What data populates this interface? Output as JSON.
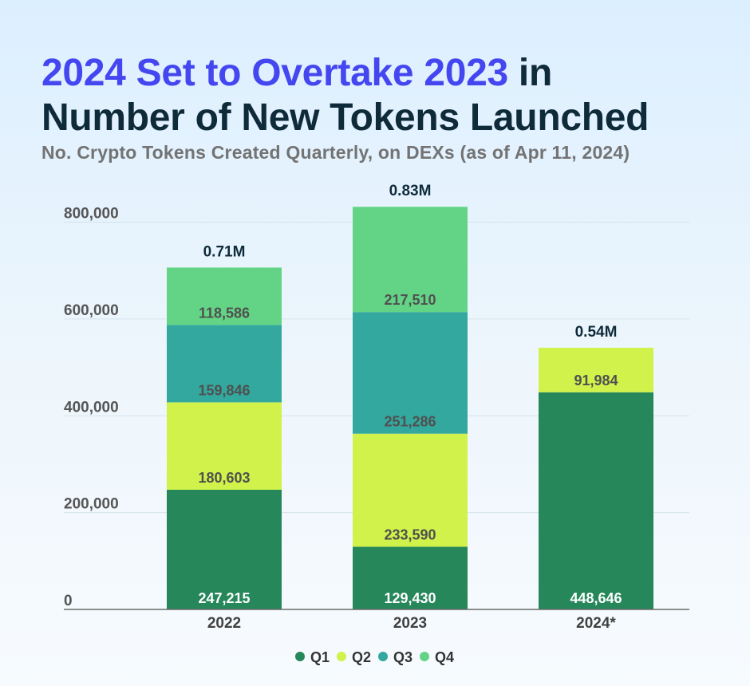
{
  "header": {
    "title_accent": "2024 Set to Overtake 2023",
    "title_rest_1": " in",
    "title_line2": "Number of New Tokens Launched",
    "subtitle": "No. Crypto Tokens Created Quarterly, on DEXs (as of Apr 11, 2024)"
  },
  "chart_data": {
    "type": "bar",
    "stacked": true,
    "title": "2024 Set to Overtake 2023 in Number of New Tokens Launched",
    "subtitle": "No. Crypto Tokens Created Quarterly, on DEXs (as of Apr 11, 2024)",
    "categories": [
      "2022",
      "2023",
      "2024*"
    ],
    "series": [
      {
        "name": "Q1",
        "color": "#25875a",
        "values": [
          247215,
          129430,
          448646
        ],
        "labels": [
          "247,215",
          "129,430",
          "448,646"
        ]
      },
      {
        "name": "Q2",
        "color": "#d0f24a",
        "values": [
          180603,
          233590,
          91984
        ],
        "labels": [
          "180,603",
          "233,590",
          "91,984"
        ]
      },
      {
        "name": "Q3",
        "color": "#33a89f",
        "values": [
          159846,
          251286,
          null
        ],
        "labels": [
          "159,846",
          "251,286",
          ""
        ]
      },
      {
        "name": "Q4",
        "color": "#63d485",
        "values": [
          118586,
          217510,
          null
        ],
        "labels": [
          "118,586",
          "217,510",
          ""
        ]
      }
    ],
    "totals": [
      "0.71M",
      "0.83M",
      "0.54M"
    ],
    "ylim": [
      0,
      880000
    ],
    "yticks": [
      0,
      200000,
      400000,
      600000,
      800000
    ],
    "ytick_labels": [
      "0",
      "200,000",
      "400,000",
      "600,000",
      "800,000"
    ],
    "xlabel": "",
    "ylabel": "",
    "grid": true,
    "legend": "bottom-center"
  }
}
